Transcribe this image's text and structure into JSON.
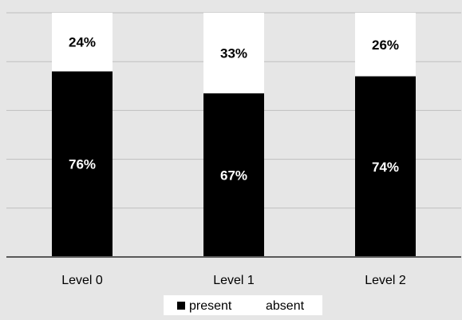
{
  "chart_data": {
    "type": "bar",
    "stacked": true,
    "percent": true,
    "categories": [
      "Level 0",
      "Level 1",
      "Level 2"
    ],
    "series": [
      {
        "name": "present",
        "values": [
          76,
          67,
          74
        ],
        "labels": [
          "76%",
          "67%",
          "74%"
        ],
        "color": "#000000",
        "label_color": "#ffffff"
      },
      {
        "name": "absent",
        "values": [
          24,
          33,
          26
        ],
        "labels": [
          "24%",
          "33%",
          "26%"
        ],
        "color": "#ffffff",
        "label_color": "#000000"
      }
    ],
    "ylim": [
      0,
      100
    ],
    "gridlines": true,
    "y_tick_labels_shown": false,
    "legend": {
      "position": "bottom",
      "items": [
        "present",
        "absent"
      ]
    },
    "colors": {
      "background": "#e6e6e6",
      "gridline": "#bfbfbf",
      "axis": "#595959"
    }
  }
}
